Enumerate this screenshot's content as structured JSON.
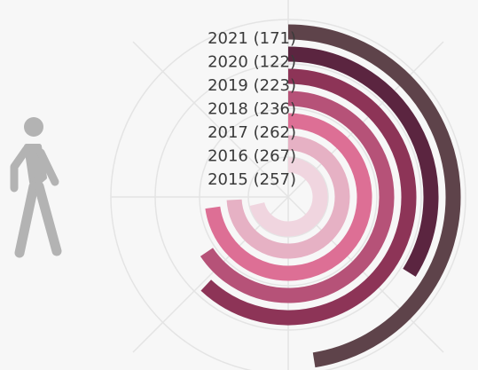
{
  "chart_data": {
    "type": "radial-bar",
    "categories": [
      "2015",
      "2016",
      "2017",
      "2018",
      "2019",
      "2020",
      "2021"
    ],
    "values": [
      257,
      267,
      262,
      236,
      223,
      122,
      171
    ],
    "value_labels": [
      "2015 (257)",
      "2016 (267)",
      "2017 (262)",
      "2018 (236)",
      "2019 (223)",
      "2020 (122)",
      "2021 (171)"
    ],
    "colors": [
      "#f0d5df",
      "#e6b1c4",
      "#dd6f95",
      "#b65278",
      "#8d3457",
      "#5b2540",
      "#5e434a"
    ],
    "xlim": [
      0,
      360
    ]
  }
}
